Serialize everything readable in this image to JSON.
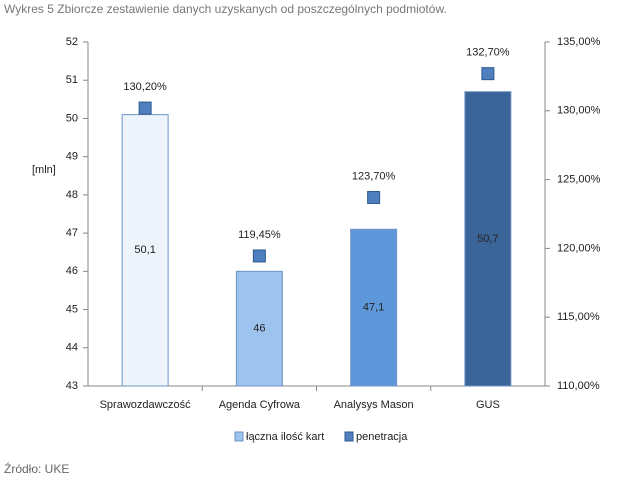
{
  "chart_data": {
    "type": "bar",
    "title": "Wykres 5 Zbiorcze zestawienie danych uzyskanych od poszczególnych podmiotów.",
    "ylabel": "[mln]",
    "source": "Źródło: UKE",
    "categories": [
      "Sprawozdawczość",
      "Agenda Cyfrowa",
      "Analysys Mason",
      "GUS"
    ],
    "series": [
      {
        "name": "łączna ilość kart",
        "color": "#9dc3ee",
        "colors": [
          "#eef4fc",
          "#9dc3ee",
          "#5f97db",
          "#3b6498"
        ],
        "values": [
          50.1,
          46,
          47.1,
          50.7
        ],
        "value_labels": [
          "50,1",
          "46",
          "47,1",
          "50,7"
        ]
      },
      {
        "name": "penetracja",
        "color": "#4f7fbf",
        "axis": "y2",
        "values": [
          130.2,
          119.45,
          123.7,
          132.7
        ],
        "value_labels": [
          "130,20%",
          "119,45%",
          "123,70%",
          "132,70%"
        ]
      }
    ],
    "ylim": [
      43,
      52
    ],
    "yticks": [
      43,
      44,
      45,
      46,
      47,
      48,
      49,
      50,
      51,
      52
    ],
    "y2lim": [
      110,
      135
    ],
    "y2ticks": [
      {
        "value": 110,
        "label": "110,00%"
      },
      {
        "value": 115,
        "label": "115,00%"
      },
      {
        "value": 120,
        "label": "120,00%"
      },
      {
        "value": 125,
        "label": "125,00%"
      },
      {
        "value": 130,
        "label": "130,00%"
      },
      {
        "value": 135,
        "label": "135,00%"
      }
    ],
    "grid": false,
    "legend": "bottom"
  }
}
